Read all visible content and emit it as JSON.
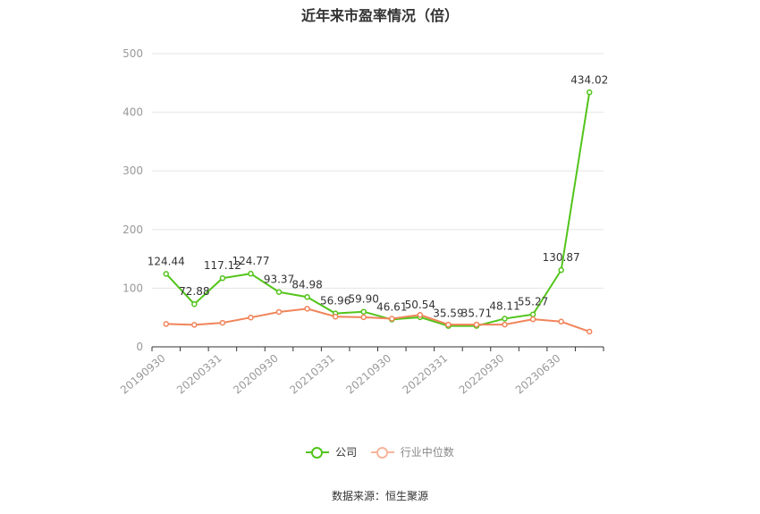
{
  "title": "近年来市盈率情况（倍）",
  "source": "数据来源：恒生聚源",
  "legend": {
    "company": "公司",
    "industry": "行业中位数"
  },
  "colors": {
    "company": "#52c41a",
    "industry": "#f0845a",
    "grid": "#e6e6e6",
    "axis": "#999999"
  },
  "chart_data": {
    "type": "line",
    "title": "近年来市盈率情况（倍）",
    "x_tick_labels": [
      "20190930",
      "20200331",
      "20200930",
      "20210331",
      "20210930",
      "20220331",
      "20220930",
      "20230630"
    ],
    "ylim": [
      0,
      500
    ],
    "y_ticks": [
      0,
      100,
      200,
      300,
      400,
      500
    ],
    "grid": true,
    "legend_position": "bottom",
    "series": [
      {
        "name": "公司",
        "values": [
          124.44,
          72.88,
          117.12,
          124.77,
          93.37,
          84.98,
          56.96,
          59.9,
          46.61,
          50.54,
          35.59,
          35.71,
          48.11,
          55.27,
          130.87,
          434.02
        ],
        "labels": [
          "124.44",
          "72.88",
          "117.12",
          "124.77",
          "93.37",
          "84.98",
          "56.96",
          "59.90",
          "46.61",
          "50.54",
          "35.59",
          "35.71",
          "48.11",
          "55.27",
          "130.87",
          "434.02"
        ]
      },
      {
        "name": "行业中位数",
        "values": [
          39,
          37.5,
          41,
          50,
          59.5,
          65,
          51.5,
          50.5,
          48,
          54.5,
          38,
          38,
          38,
          47,
          43,
          26
        ]
      }
    ]
  }
}
